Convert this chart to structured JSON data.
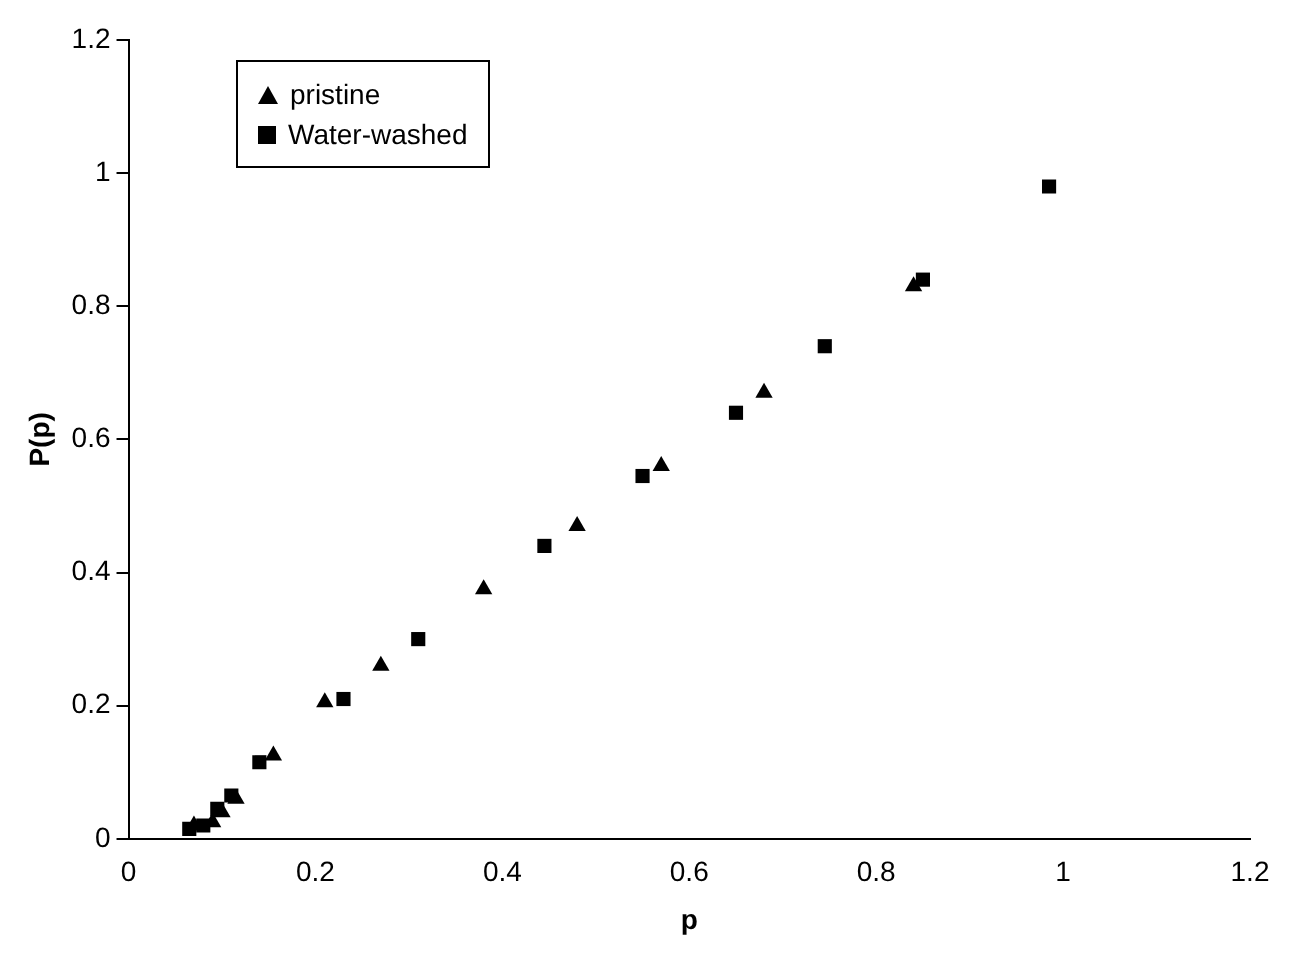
{
  "chart_data": {
    "type": "scatter",
    "xlabel": "p",
    "ylabel": "P(p)",
    "xlim": [
      0,
      1.2
    ],
    "ylim": [
      0,
      1.2
    ],
    "xticks": [
      0,
      0.2,
      0.4,
      0.6,
      0.8,
      1,
      1.2
    ],
    "yticks": [
      0,
      0.2,
      0.4,
      0.6,
      0.8,
      1,
      1.2
    ],
    "grid": false,
    "legend": "top left",
    "series": [
      {
        "name": "pristine",
        "color": "#000000",
        "marker": "triangle",
        "x": [
          0.07,
          0.09,
          0.1,
          0.115,
          0.155,
          0.21,
          0.27,
          0.38,
          0.48,
          0.57,
          0.68,
          0.84
        ],
        "values": [
          0.02,
          0.025,
          0.04,
          0.06,
          0.125,
          0.205,
          0.26,
          0.375,
          0.47,
          0.56,
          0.67,
          0.83
        ]
      },
      {
        "name": "Water-washed",
        "color": "#000000",
        "marker": "square",
        "x": [
          0.065,
          0.08,
          0.095,
          0.11,
          0.14,
          0.23,
          0.31,
          0.445,
          0.55,
          0.65,
          0.745,
          0.85,
          0.985
        ],
        "values": [
          0.015,
          0.02,
          0.045,
          0.065,
          0.115,
          0.21,
          0.3,
          0.44,
          0.545,
          0.64,
          0.74,
          0.84,
          0.98
        ]
      }
    ]
  }
}
